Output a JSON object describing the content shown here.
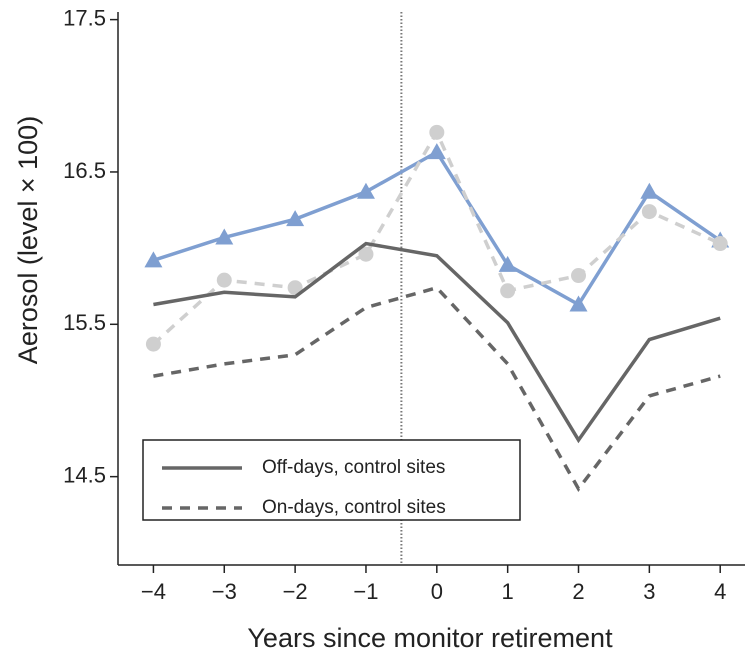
{
  "chart_data": {
    "type": "line",
    "x_label": "Years since monitor retirement",
    "y_label": "Aerosol (level × 100)",
    "x": [
      -4,
      -3,
      -2,
      -1,
      0,
      1,
      2,
      3,
      4
    ],
    "xlim": [
      -4.5,
      4.35
    ],
    "ylim": [
      13.92,
      17.55
    ],
    "xticks": [
      {
        "value": -4,
        "label": "−4"
      },
      {
        "value": -3,
        "label": "−3"
      },
      {
        "value": -2,
        "label": "−2"
      },
      {
        "value": -1,
        "label": "−1"
      },
      0,
      1,
      2,
      3,
      4
    ],
    "yticks": [
      14.5,
      15.5,
      16.5,
      17.5
    ],
    "reference_line_x": -0.5,
    "series": [
      {
        "color": "#7f9fd1",
        "marker": "triangle",
        "dash": "solid",
        "values": [
          15.92,
          16.07,
          16.19,
          16.37,
          16.63,
          15.89,
          15.63,
          16.37,
          16.05
        ]
      },
      {
        "color": "#cfcfcf",
        "marker": "circle",
        "dash": "dashed",
        "values": [
          15.37,
          15.79,
          15.74,
          15.96,
          16.76,
          15.72,
          15.82,
          16.24,
          16.03
        ]
      },
      {
        "name": "Off-days, control sites",
        "color": "#666666",
        "marker": "none",
        "dash": "solid",
        "values": [
          15.63,
          15.71,
          15.68,
          16.03,
          15.95,
          15.51,
          14.74,
          15.4,
          15.54
        ]
      },
      {
        "name": "On-days, control sites",
        "color": "#666666",
        "marker": "none",
        "dash": "dashed",
        "values": [
          15.16,
          15.24,
          15.3,
          15.61,
          15.74,
          15.24,
          14.42,
          15.03,
          15.16
        ]
      }
    ]
  }
}
